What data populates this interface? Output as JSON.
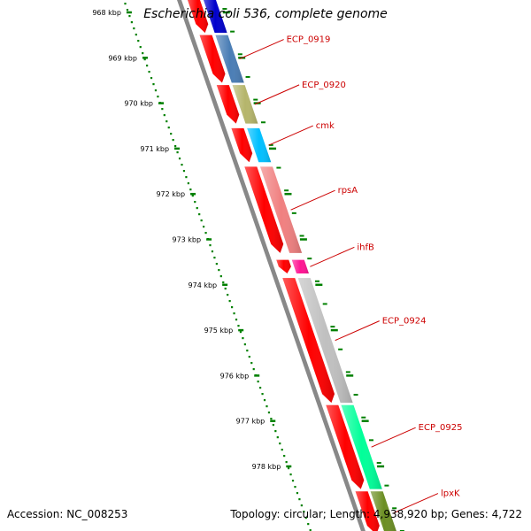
{
  "title": "Escherichia coli 536, complete genome",
  "footer": {
    "accession": "Accession: NC_008253",
    "summary": "Topology: circular; Length: 4,938,920 bp; Genes: 4,722"
  },
  "colors": {
    "cds_strand": "#ff0000",
    "backbone": "#888888",
    "kbp_dots": "#008000",
    "gene_label": "#cc0000"
  },
  "ticks": [
    {
      "kbp": 968,
      "label": "968 kbp"
    },
    {
      "kbp": 969,
      "label": "969 kbp"
    },
    {
      "kbp": 970,
      "label": "970 kbp"
    },
    {
      "kbp": 971,
      "label": "971 kbp"
    },
    {
      "kbp": 972,
      "label": "972 kbp"
    },
    {
      "kbp": 973,
      "label": "973 kbp"
    },
    {
      "kbp": 974,
      "label": "974 kbp"
    },
    {
      "kbp": 975,
      "label": "975 kbp"
    },
    {
      "kbp": 976,
      "label": "976 kbp"
    },
    {
      "kbp": 977,
      "label": "977 kbp"
    },
    {
      "kbp": 978,
      "label": "978 kbp"
    }
  ],
  "genes": [
    {
      "name": "",
      "start_kbp": 967.7,
      "end_kbp": 968.45,
      "color": "#0000cc"
    },
    {
      "name": "ECP_0919",
      "start_kbp": 968.5,
      "end_kbp": 969.55,
      "color": "#4a7db5"
    },
    {
      "name": "ECP_0920",
      "start_kbp": 969.6,
      "end_kbp": 970.45,
      "color": "#b5b56b"
    },
    {
      "name": "cmk",
      "start_kbp": 970.55,
      "end_kbp": 971.3,
      "color": "#00bfff"
    },
    {
      "name": "rpsA",
      "start_kbp": 971.4,
      "end_kbp": 973.3,
      "color": "#f08080"
    },
    {
      "name": "ihfB",
      "start_kbp": 973.45,
      "end_kbp": 973.75,
      "color": "#ff1493"
    },
    {
      "name": "ECP_0924",
      "start_kbp": 973.85,
      "end_kbp": 976.6,
      "color": "#c0c0c0"
    },
    {
      "name": "ECP_0925",
      "start_kbp": 976.65,
      "end_kbp": 978.5,
      "color": "#00ff99"
    },
    {
      "name": "lpxK",
      "start_kbp": 978.55,
      "end_kbp": 979.5,
      "color": "#6b8e23"
    }
  ]
}
